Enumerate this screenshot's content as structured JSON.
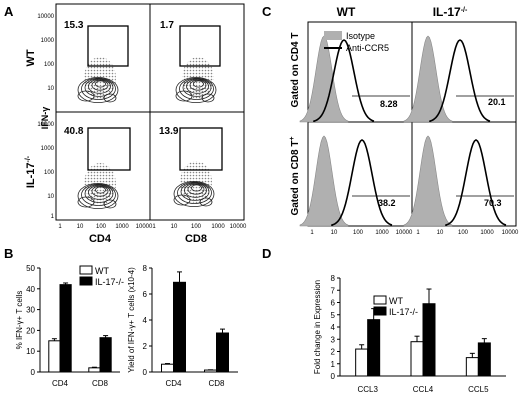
{
  "panels": {
    "A": "A",
    "B": "B",
    "C": "C",
    "D": "D"
  },
  "panel_a": {
    "row_labels": [
      "WT",
      "IL-17"
    ],
    "row_label_sup": "-/-",
    "y_axis_label": "IFN-γ",
    "x_labels": [
      "CD4",
      "CD8"
    ],
    "ticks": [
      "1",
      "10",
      "100",
      "1000",
      "10000"
    ],
    "percentages": {
      "wt_cd4": "15.3",
      "wt_cd8": "1.7",
      "ko_cd4": "40.8",
      "ko_cd8": "13.9"
    }
  },
  "panel_c": {
    "col_labels": [
      "WT",
      "IL-17"
    ],
    "col_label_sup": "-/-",
    "row_labels": [
      "Gated on CD4 T",
      "Gated on CD8 T"
    ],
    "row_label_sup": "+",
    "legend": [
      "Isotype",
      "Anti-CCR5"
    ],
    "ticks": [
      "1",
      "10",
      "100",
      "1000",
      "10000"
    ],
    "percentages": {
      "wt_cd4": "8.28",
      "ko_cd4": "20.1",
      "wt_cd8": "38.2",
      "ko_cd8": "70.3"
    },
    "colors": {
      "isotype": "#b0b0b0",
      "anti": "#000000"
    }
  },
  "chart_data": [
    {
      "type": "bar",
      "categories": [
        "CD4",
        "CD8"
      ],
      "ylabel": "% IFN-γ+ T cells",
      "ylim": [
        0,
        50
      ],
      "yticks": [
        0,
        10,
        20,
        30,
        40,
        50
      ],
      "series": [
        {
          "name": "WT",
          "values": [
            15,
            2
          ],
          "errors": [
            1,
            0.3
          ]
        },
        {
          "name": "IL-17-/-",
          "values": [
            42,
            16.5
          ],
          "errors": [
            0.8,
            1
          ]
        }
      ],
      "legend_position": "top-right"
    },
    {
      "type": "bar",
      "categories": [
        "CD4",
        "CD8"
      ],
      "ylabel": "Yield of IFN-γ+ T cells (x10-4)",
      "ylim": [
        0,
        8
      ],
      "yticks": [
        0,
        2,
        4,
        6,
        8
      ],
      "series": [
        {
          "name": "WT",
          "values": [
            0.6,
            0.15
          ],
          "errors": [
            0.05,
            0.02
          ]
        },
        {
          "name": "IL-17-/-",
          "values": [
            6.9,
            3.0
          ],
          "errors": [
            0.8,
            0.3
          ]
        }
      ]
    },
    {
      "type": "bar",
      "categories": [
        "CCL3",
        "CCL4",
        "CCL5"
      ],
      "ylabel": "Fold change in Expression",
      "ylim": [
        0,
        8
      ],
      "yticks": [
        0,
        1,
        2,
        3,
        4,
        5,
        6,
        7,
        8
      ],
      "series": [
        {
          "name": "WT",
          "values": [
            2.2,
            2.8,
            1.5
          ],
          "errors": [
            0.35,
            0.45,
            0.35
          ]
        },
        {
          "name": "IL-17-/-",
          "values": [
            4.6,
            5.9,
            2.7
          ],
          "errors": [
            0.9,
            1.2,
            0.35
          ]
        }
      ],
      "legend_position": "top-left"
    }
  ]
}
